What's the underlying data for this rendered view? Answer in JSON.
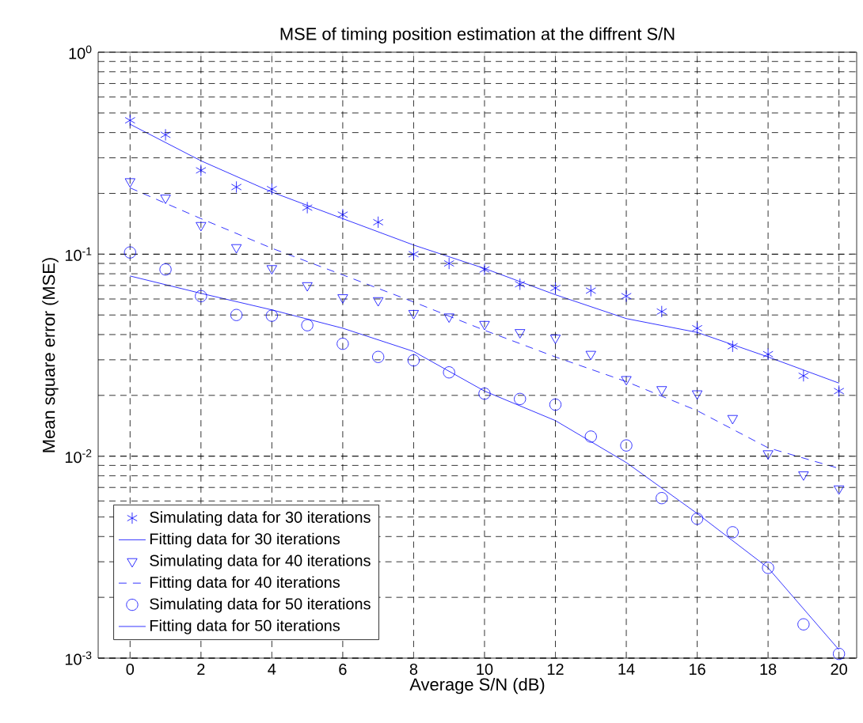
{
  "chart_data": {
    "type": "scatter",
    "title": "MSE of timing position estimation at the diffrent S/N",
    "xlabel": "Average S/N (dB)",
    "ylabel": "Mean square error (MSE)",
    "x": [
      0,
      1,
      2,
      3,
      4,
      5,
      6,
      7,
      8,
      9,
      10,
      11,
      12,
      13,
      14,
      15,
      16,
      17,
      18,
      19,
      20
    ],
    "series": [
      {
        "name": "Simulating data for 30 iterations",
        "marker": "cross",
        "color": "#0000ff",
        "values": [
          0.46,
          0.39,
          0.26,
          0.215,
          0.21,
          0.17,
          0.157,
          0.144,
          0.1,
          0.09,
          0.084,
          0.071,
          0.068,
          0.066,
          0.062,
          0.052,
          0.043,
          0.035,
          0.032,
          0.025,
          0.021
        ]
      },
      {
        "name": "Fitting data for 30 iterations",
        "type": "line",
        "line_style": "solid",
        "marker": "none",
        "color": "#0000ff",
        "x": [
          0,
          2,
          4,
          6,
          8,
          10,
          12,
          14,
          16,
          18,
          20
        ],
        "values": [
          0.44,
          0.29,
          0.203,
          0.15,
          0.111,
          0.085,
          0.063,
          0.048,
          0.041,
          0.031,
          0.023
        ]
      },
      {
        "name": "Simulating data for 40 iterations",
        "marker": "triangle",
        "color": "#0000ff",
        "values": [
          0.229,
          0.19,
          0.139,
          0.108,
          0.085,
          0.07,
          0.061,
          0.059,
          0.051,
          0.049,
          0.045,
          0.041,
          0.0385,
          0.032,
          0.024,
          0.0214,
          0.0204,
          0.0154,
          0.0103,
          0.0081,
          0.0069
        ]
      },
      {
        "name": "Fitting data for 40 iterations",
        "type": "line",
        "line_style": "dashed",
        "marker": "none",
        "color": "#0000ff",
        "x": [
          0,
          2,
          4,
          6,
          8,
          10,
          12,
          14,
          16,
          18,
          20
        ],
        "values": [
          0.213,
          0.15,
          0.107,
          0.079,
          0.058,
          0.042,
          0.031,
          0.0234,
          0.0168,
          0.011,
          0.0087
        ]
      },
      {
        "name": "Simulating data for 50 iterations",
        "marker": "circle",
        "color": "#0000ff",
        "values": [
          0.102,
          0.084,
          0.062,
          0.05,
          0.0496,
          0.0445,
          0.036,
          0.031,
          0.0298,
          0.026,
          0.0204,
          0.0192,
          0.018,
          0.0125,
          0.0113,
          0.0062,
          0.0049,
          0.0042,
          0.0028,
          0.00147,
          0.00105
        ]
      },
      {
        "name": "Fitting data for 50 iterations",
        "type": "line",
        "line_style": "solid",
        "marker": "none",
        "color": "#0000ff",
        "x": [
          0,
          2,
          4,
          6,
          8,
          10,
          12,
          14,
          16,
          18,
          20
        ],
        "values": [
          0.078,
          0.064,
          0.053,
          0.043,
          0.033,
          0.021,
          0.015,
          0.0093,
          0.0052,
          0.0028,
          0.0011
        ]
      }
    ],
    "xlim": [
      -0.9,
      20.5
    ],
    "xticks": [
      0,
      2,
      4,
      6,
      8,
      10,
      12,
      14,
      16,
      18,
      20
    ],
    "ylim": [
      0.001,
      1
    ],
    "yticks": [
      {
        "value": 0.001,
        "label": "10$^{-3}$"
      },
      {
        "value": 0.01,
        "label": "10$^{-2}$"
      },
      {
        "value": 0.1,
        "label": "10$^{-1}$"
      },
      {
        "value": 1,
        "label": "10$^{0}$"
      }
    ],
    "log": "y",
    "grid": true,
    "legend": "bottom left"
  }
}
